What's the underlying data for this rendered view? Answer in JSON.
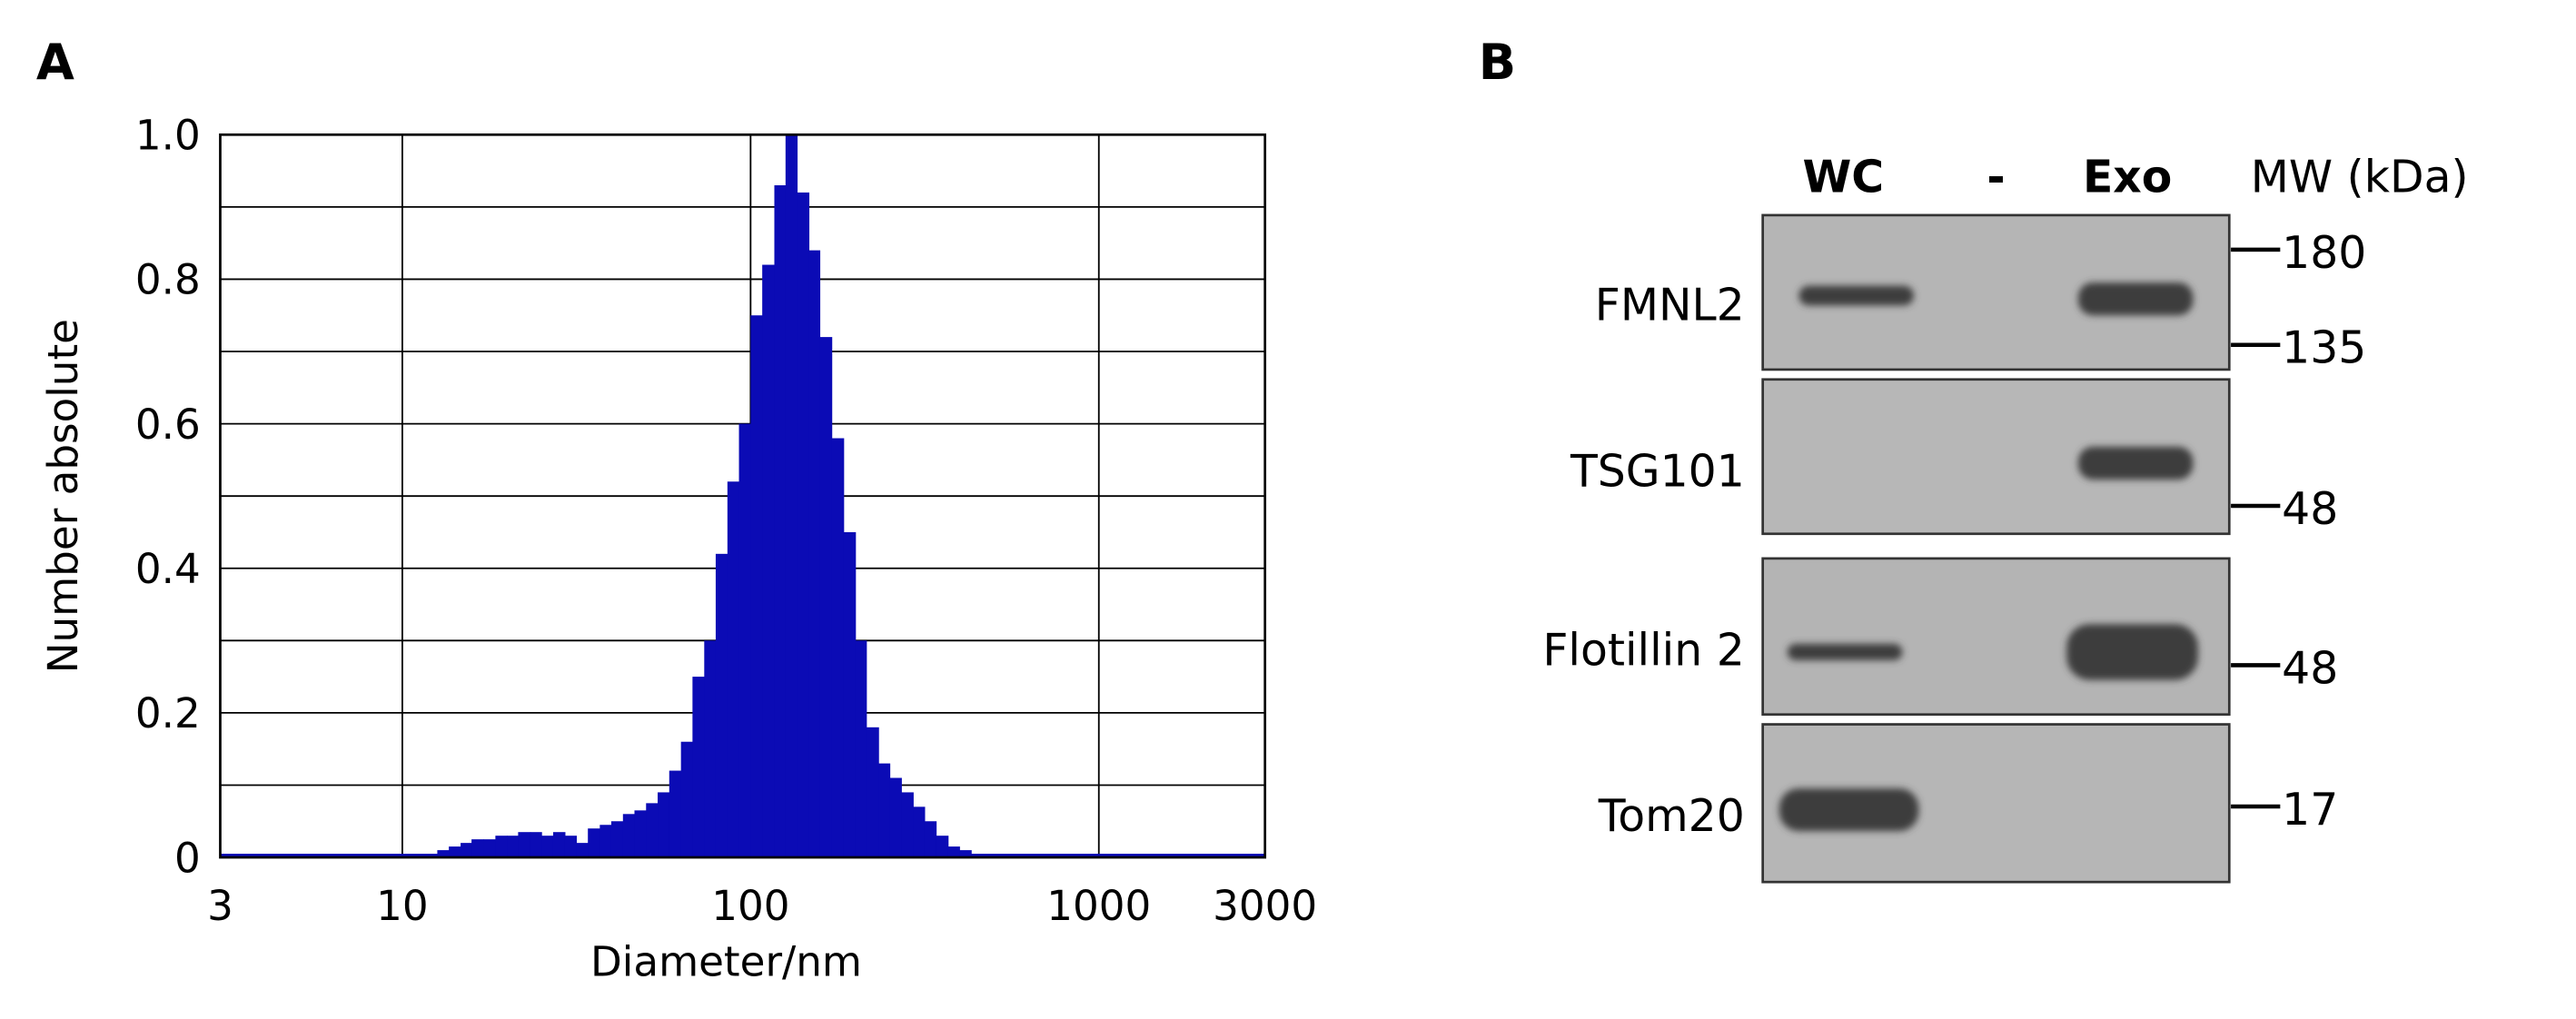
{
  "panel_a_label": "A",
  "chart_data": {
    "type": "histogram",
    "xlabel": "Diameter/nm",
    "ylabel": "Number absolute",
    "color": "#0b0bb5",
    "xscale": "log",
    "grid": true,
    "bins": [
      3,
      12.6,
      13.6,
      14.7,
      15.8,
      17.1,
      18.5,
      20.0,
      21.5,
      23.3,
      25.1,
      27.1,
      29.3,
      31.6,
      34.1,
      36.9,
      39.8,
      43.0,
      46.4,
      50.1,
      54.1,
      58.4,
      63.1,
      68.1,
      73.6,
      79.4,
      85.8,
      92.6,
      100,
      108,
      117,
      126,
      136,
      147,
      158,
      171,
      185,
      200,
      215,
      233,
      251,
      271,
      293,
      316,
      341,
      369,
      398,
      430,
      3000
    ],
    "values": [
      0.005,
      0.01,
      0.015,
      0.02,
      0.025,
      0.025,
      0.03,
      0.03,
      0.035,
      0.035,
      0.03,
      0.035,
      0.03,
      0.02,
      0.04,
      0.045,
      0.05,
      0.06,
      0.065,
      0.075,
      0.09,
      0.12,
      0.16,
      0.25,
      0.3,
      0.42,
      0.52,
      0.6,
      0.75,
      0.82,
      0.93,
      1.0,
      0.92,
      0.84,
      0.72,
      0.58,
      0.45,
      0.3,
      0.18,
      0.13,
      0.11,
      0.09,
      0.07,
      0.05,
      0.03,
      0.015,
      0.01,
      0.005
    ],
    "xlim": [
      3,
      3000
    ],
    "xticks": [
      3,
      10,
      100,
      1000,
      3000
    ],
    "ylim": [
      0,
      1.0
    ],
    "yticks": [
      0,
      0.2,
      0.4,
      0.6,
      0.8,
      {
        "value": 1,
        "label": "1.0"
      }
    ],
    "yminor": [
      0.1,
      0.3,
      0.5,
      0.7,
      0.9
    ]
  },
  "blot": {
    "label": "B",
    "lanes": [
      "WC",
      "-",
      "Exo"
    ],
    "mw_header": "MW (kDa)",
    "rows": [
      {
        "name": "FMNL2",
        "markers": [
          180,
          135
        ]
      },
      {
        "name": "TSG101",
        "markers": [
          48
        ]
      },
      {
        "name": "Flotillin 2",
        "markers": [
          48
        ]
      },
      {
        "name": "Tom20",
        "markers": [
          17
        ]
      }
    ]
  }
}
